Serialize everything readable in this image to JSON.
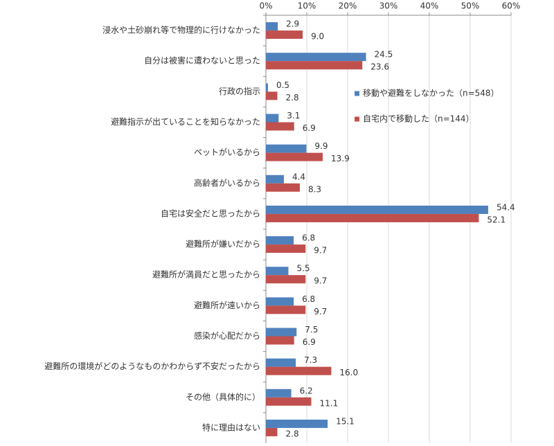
{
  "chart_data": {
    "type": "hbar",
    "categories": [
      "浸水や土砂崩れ等で物理的に行けなかった",
      "自分は被害に遭わないと思った",
      "行政の指示",
      "避難指示が出ていることを知らなかった",
      "ペットがいるから",
      "高齢者がいるから",
      "自宅は安全だと思ったから",
      "避難所が嫌いだから",
      "避難所が満員だと思ったから",
      "避難所が遠いから",
      "感染が心配だから",
      "避難所の環境がどのようなものかわからず不安だったから",
      "その他（具体的に）",
      "特に理由はない"
    ],
    "series": [
      {
        "name": "移動や避難をしなかった（n=548）",
        "color": "#4f81bd",
        "values": [
          2.9,
          24.5,
          0.5,
          3.1,
          9.9,
          4.4,
          54.4,
          6.8,
          5.5,
          6.8,
          7.5,
          7.3,
          6.2,
          15.1
        ]
      },
      {
        "name": "自宅内で移動した（n=144）",
        "color": "#c0504d",
        "values": [
          9.0,
          23.6,
          2.8,
          6.9,
          13.9,
          8.3,
          52.1,
          9.7,
          9.7,
          9.7,
          6.9,
          16.0,
          11.1,
          2.8
        ],
        "value_labels": [
          "9.0",
          "23.6",
          "2.8",
          "6.9",
          "13.9",
          "8.3",
          "52.1",
          "9.7",
          "9.7",
          "9.7",
          "6.9",
          "16.0",
          "11.1",
          "2.8"
        ]
      }
    ],
    "xlim": [
      0,
      60
    ],
    "xticks": [
      {
        "value": 0,
        "label": "0%"
      },
      {
        "value": 10,
        "label": "10%"
      },
      {
        "value": 20,
        "label": "20%"
      },
      {
        "value": 30,
        "label": "30%"
      },
      {
        "value": 40,
        "label": "40%"
      },
      {
        "value": 50,
        "label": "50%"
      },
      {
        "value": 60,
        "label": "60%"
      }
    ],
    "grid": true,
    "legend": "inside"
  }
}
